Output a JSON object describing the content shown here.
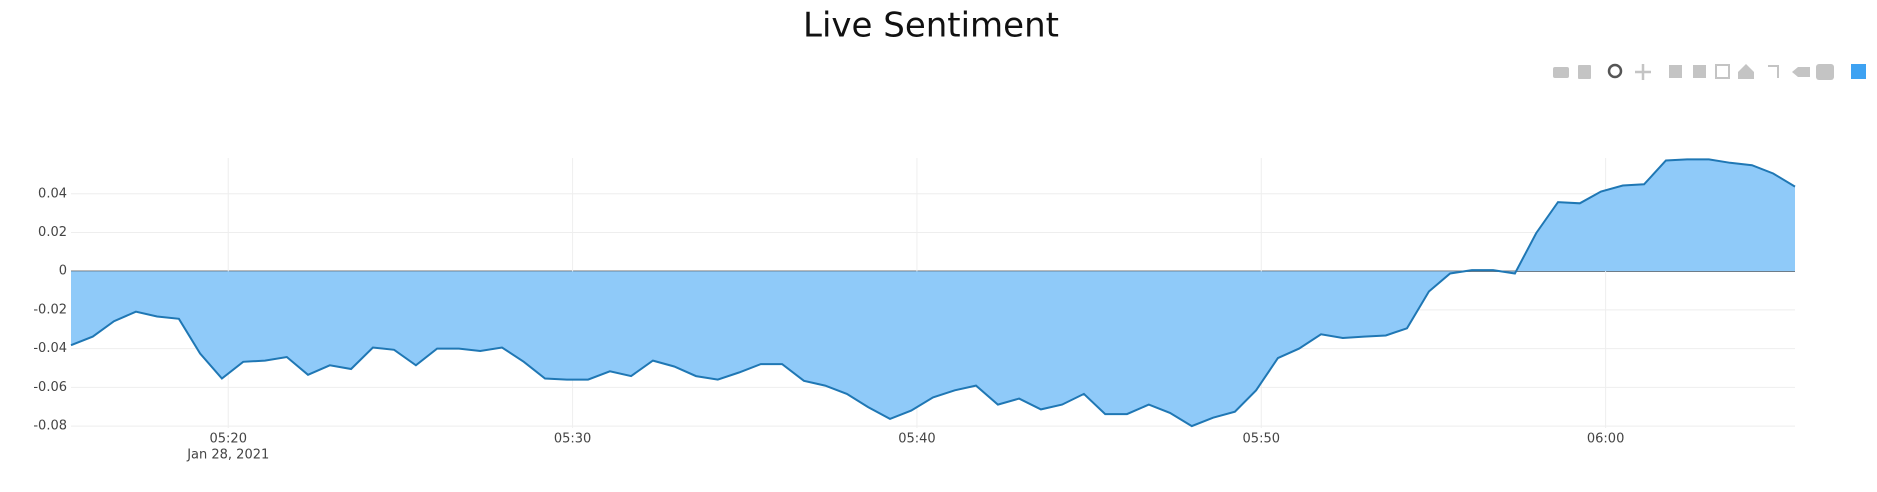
{
  "chart_data": {
    "type": "area",
    "title": "Live Sentiment",
    "x": [
      "2021-01-28T05:15:26",
      "2021-01-28T05:16:04",
      "2021-01-28T05:16:41",
      "2021-01-28T05:17:19",
      "2021-01-28T05:17:56",
      "2021-01-28T05:18:34",
      "2021-01-28T05:19:11",
      "2021-01-28T05:19:49",
      "2021-01-28T05:20:26",
      "2021-01-28T05:21:04",
      "2021-01-28T05:21:42",
      "2021-01-28T05:22:19",
      "2021-01-28T05:22:57",
      "2021-01-28T05:23:34",
      "2021-01-28T05:24:12",
      "2021-01-28T05:24:49",
      "2021-01-28T05:25:27",
      "2021-01-28T05:26:04",
      "2021-01-28T05:26:42",
      "2021-01-28T05:27:19",
      "2021-01-28T05:27:57",
      "2021-01-28T05:28:35",
      "2021-01-28T05:29:12",
      "2021-01-28T05:29:50",
      "2021-01-28T05:30:27",
      "2021-01-28T05:31:05",
      "2021-01-28T05:31:42",
      "2021-01-28T05:32:20",
      "2021-01-28T05:32:57",
      "2021-01-28T05:33:35",
      "2021-01-28T05:34:13",
      "2021-01-28T05:34:50",
      "2021-01-28T05:35:28",
      "2021-01-28T05:36:05",
      "2021-01-28T05:36:43",
      "2021-01-28T05:37:20",
      "2021-01-28T05:37:58",
      "2021-01-28T05:38:35",
      "2021-01-28T05:39:13",
      "2021-01-28T05:39:50",
      "2021-01-28T05:40:28",
      "2021-01-28T05:41:06",
      "2021-01-28T05:41:43",
      "2021-01-28T05:42:21",
      "2021-01-28T05:42:58",
      "2021-01-28T05:43:36",
      "2021-01-28T05:44:13",
      "2021-01-28T05:44:51",
      "2021-01-28T05:45:28",
      "2021-01-28T05:46:06",
      "2021-01-28T05:46:44",
      "2021-01-28T05:47:21",
      "2021-01-28T05:47:59",
      "2021-01-28T05:48:36",
      "2021-01-28T05:49:14",
      "2021-01-28T05:49:51",
      "2021-01-28T05:50:29",
      "2021-01-28T05:51:06",
      "2021-01-28T05:51:44",
      "2021-01-28T05:52:22",
      "2021-01-28T05:52:59",
      "2021-01-28T05:53:37",
      "2021-01-28T05:54:14",
      "2021-01-28T05:54:52",
      "2021-01-28T05:55:29",
      "2021-01-28T05:56:07",
      "2021-01-28T05:56:44",
      "2021-01-28T05:57:22",
      "2021-01-28T05:57:59",
      "2021-01-28T05:58:37",
      "2021-01-28T05:59:15",
      "2021-01-28T05:59:52",
      "2021-01-28T06:00:30",
      "2021-01-28T06:01:07",
      "2021-01-28T06:01:45",
      "2021-01-28T06:02:22",
      "2021-01-28T06:03:00",
      "2021-01-28T06:03:37",
      "2021-01-28T06:04:15",
      "2021-01-28T06:04:52",
      "2021-01-28T06:05:30"
    ],
    "values": [
      -0.0382,
      -0.0338,
      -0.0258,
      -0.0209,
      -0.0234,
      -0.0246,
      -0.0425,
      -0.0554,
      -0.0468,
      -0.0462,
      -0.0443,
      -0.0535,
      -0.0486,
      -0.0505,
      -0.0394,
      -0.0406,
      -0.0486,
      -0.04,
      -0.04,
      -0.0412,
      -0.0394,
      -0.0468,
      -0.0554,
      -0.056,
      -0.056,
      -0.0517,
      -0.0542,
      -0.0462,
      -0.0492,
      -0.0542,
      -0.056,
      -0.0523,
      -0.048,
      -0.048,
      -0.0566,
      -0.0591,
      -0.0634,
      -0.0702,
      -0.0763,
      -0.072,
      -0.0652,
      -0.0615,
      -0.0591,
      -0.0689,
      -0.0658,
      -0.0714,
      -0.0689,
      -0.0634,
      -0.0738,
      -0.0738,
      -0.0689,
      -0.0732,
      -0.08,
      -0.0757,
      -0.0726,
      -0.0615,
      -0.0449,
      -0.04,
      -0.0326,
      -0.0345,
      -0.0338,
      -0.0332,
      -0.0295,
      -0.0105,
      -0.0012,
      0.0006,
      0.0006,
      -0.0012,
      0.0197,
      0.0357,
      0.0351,
      0.0412,
      0.0443,
      0.0449,
      0.0572,
      0.0578,
      0.0578,
      0.056,
      0.0548,
      0.0505,
      0.0437
    ],
    "color": "#1f77b4",
    "fill_color": "#8fcaf9",
    "xlim": [
      "2021-01-28T05:15:26",
      "2021-01-28T06:05:30"
    ],
    "xticks": [
      {
        "value": "2021-01-28T05:20:00",
        "label": "05:20"
      },
      {
        "value": "2021-01-28T05:30:00",
        "label": "05:30"
      },
      {
        "value": "2021-01-28T05:40:00",
        "label": "05:40"
      },
      {
        "value": "2021-01-28T05:50:00",
        "label": "05:50"
      },
      {
        "value": "2021-01-28T06:00:00",
        "label": "06:00"
      }
    ],
    "x_date_label": "Jan 28, 2021",
    "ylim": [
      -0.081,
      0.0585
    ],
    "yticks": [
      0.04,
      0.02,
      0,
      -0.02,
      -0.04,
      -0.06,
      -0.08
    ],
    "grid": true
  }
}
